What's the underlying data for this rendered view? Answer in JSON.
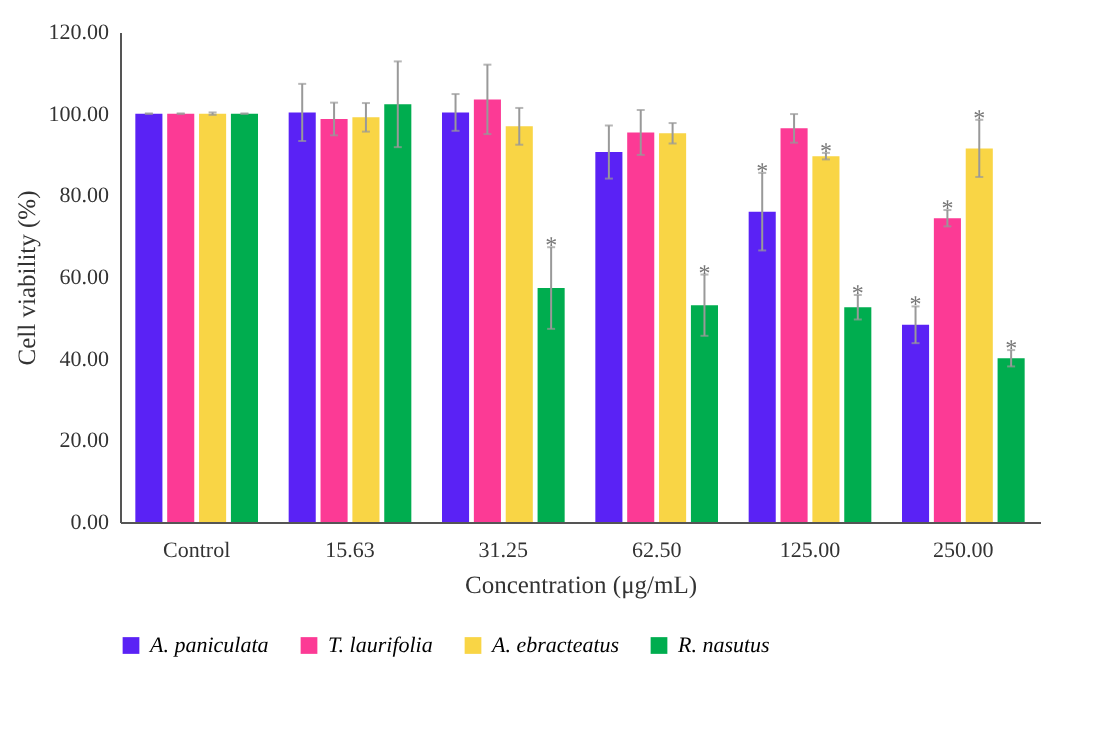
{
  "chart_data": {
    "type": "bar",
    "xlabel": "Concentration (μg/mL)",
    "ylabel": "Cell viability (%)",
    "categories": [
      "Control",
      "15.63",
      "31.25",
      "62.50",
      "125.00",
      "250.00"
    ],
    "series": [
      {
        "name": "A. paniculata",
        "color": "#5a22f5",
        "values": [
          100,
          100.3,
          100.3,
          90.6,
          76,
          48.3
        ],
        "errors": [
          0,
          7,
          4.5,
          6.5,
          9.5,
          4.5
        ]
      },
      {
        "name": "T. laurifolia",
        "color": "#fc3a95",
        "values": [
          100,
          98.7,
          103.5,
          95.4,
          96.4,
          74.4
        ],
        "errors": [
          0,
          4,
          8.5,
          5.5,
          3.5,
          2
        ]
      },
      {
        "name": "A. ebracteatus",
        "color": "#f9d545",
        "values": [
          100,
          99.1,
          96.9,
          95.2,
          89.6,
          91.5
        ],
        "errors": [
          0.3,
          3.5,
          4.5,
          2.5,
          0.8,
          7
        ]
      },
      {
        "name": "R. nasutus",
        "color": "#00ad4f",
        "values": [
          100,
          102.3,
          57.3,
          53.1,
          52.6,
          40.1
        ],
        "errors": [
          0,
          10.5,
          10,
          7.5,
          3,
          2
        ]
      }
    ],
    "ylim": [
      0,
      120
    ],
    "yticks": [
      {
        "value": 0,
        "label": "0.00"
      },
      {
        "value": 20,
        "label": "20.00"
      },
      {
        "value": 40,
        "label": "40.00"
      },
      {
        "value": 60,
        "label": "60.00"
      },
      {
        "value": 80,
        "label": "80.00"
      },
      {
        "value": 100,
        "label": "100.00"
      },
      {
        "value": 120,
        "label": "120.00"
      }
    ],
    "annotations": [
      {
        "text": "*",
        "x": "31.25",
        "y": 57.3
      },
      {
        "text": "*",
        "x": "62.50",
        "y": 53.1
      },
      {
        "text": "*",
        "x": "125.00",
        "y": 76
      },
      {
        "text": "*",
        "x": "125.00",
        "y": 89.6
      },
      {
        "text": "*",
        "x": "125.00",
        "y": 52.6
      },
      {
        "text": "*",
        "x": "250.00",
        "y": 48.3
      },
      {
        "text": "*",
        "x": "250.00",
        "y": 74.4
      },
      {
        "text": "*",
        "x": "250.00",
        "y": 91.5
      },
      {
        "text": "*",
        "x": "250.00",
        "y": 40.1
      }
    ],
    "grid": false,
    "legend": "bottom"
  }
}
